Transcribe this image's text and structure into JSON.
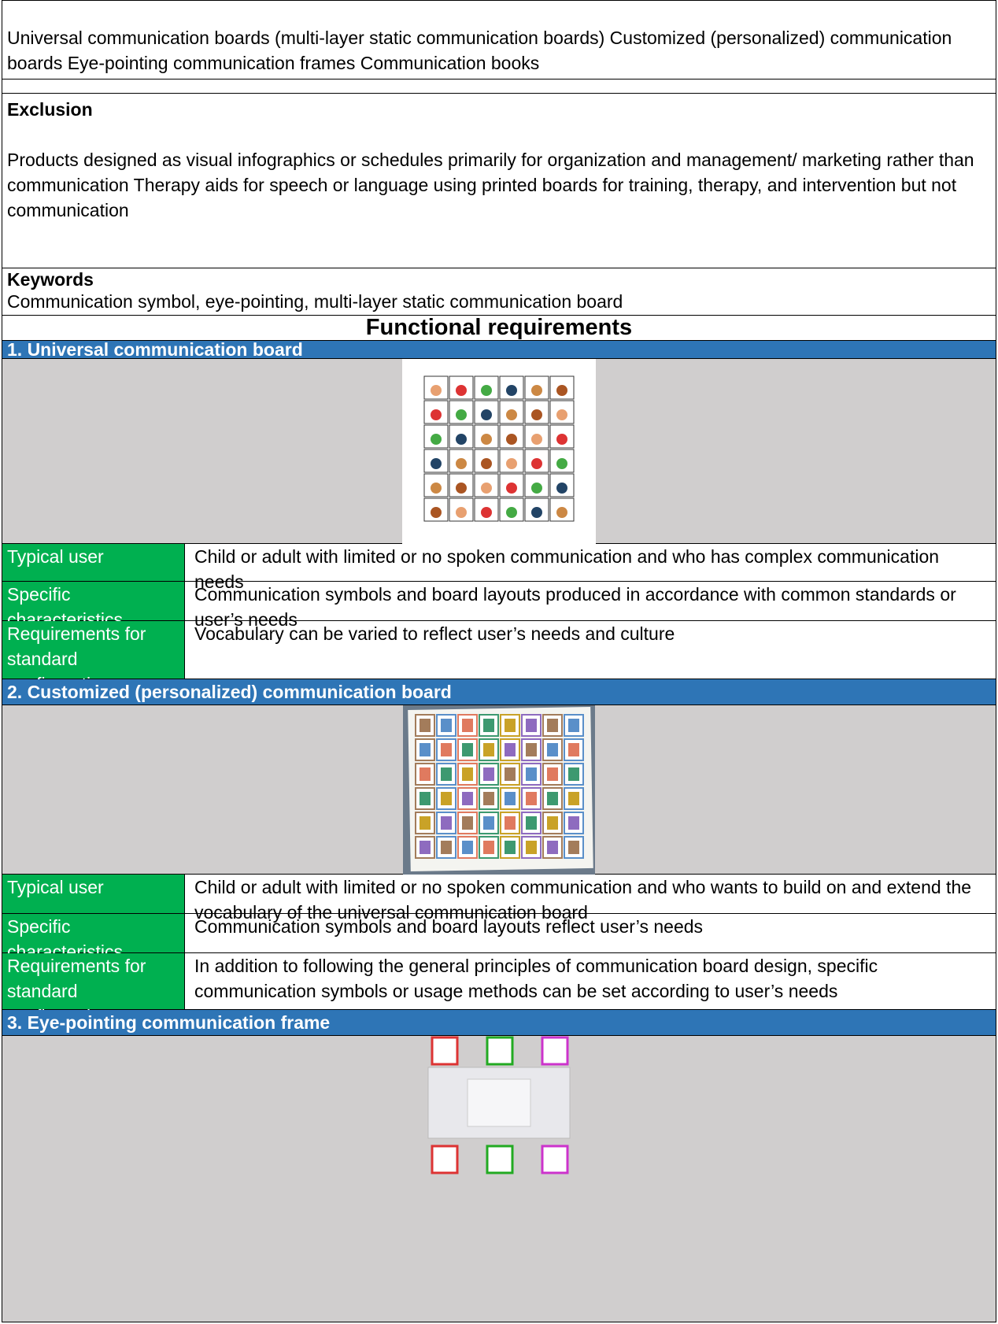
{
  "intro": "Universal communication boards (multi-layer static communication boards) Customized (personalized) communication boards Eye-pointing communication frames Communication books",
  "exclusion": {
    "heading": "Exclusion",
    "text": "Products designed as visual infographics or schedules primarily for organization and management/ marketing rather than communication Therapy aids for speech or language using printed boards for training, therapy, and intervention but not communication"
  },
  "keywords": {
    "heading": "Keywords",
    "text": "Communication symbol, eye-pointing, multi-layer static communication board"
  },
  "functional_requirements": "Functional requirements",
  "sections": [
    {
      "title": "1. Universal communication board",
      "rows": [
        {
          "label": "Typical user",
          "text": "Child or adult with limited or no spoken communication and who has complex communication needs"
        },
        {
          "label": "Specific characteristics",
          "text": "Communication symbols and board layouts produced in accordance with common standards or user’s needs"
        },
        {
          "label": "Requirements for standard configuration",
          "text": "Vocabulary can be varied to reflect user’s needs and culture"
        }
      ]
    },
    {
      "title": "2. Customized (personalized) communication board",
      "rows": [
        {
          "label": "Typical user",
          "text": "Child or adult with limited or no spoken communication and who wants to build on and extend the vocabulary of the universal communication board"
        },
        {
          "label": "Specific characteristics",
          "text": "Communication symbols and board layouts reflect user’s needs"
        },
        {
          "label": "Requirements for standard configuration",
          "text": "In addition to following the general principles of communication board design, specific communication symbols or usage methods can be set according to user’s needs"
        }
      ]
    },
    {
      "title": "3. Eye-pointing communication frame",
      "rows": []
    }
  ]
}
